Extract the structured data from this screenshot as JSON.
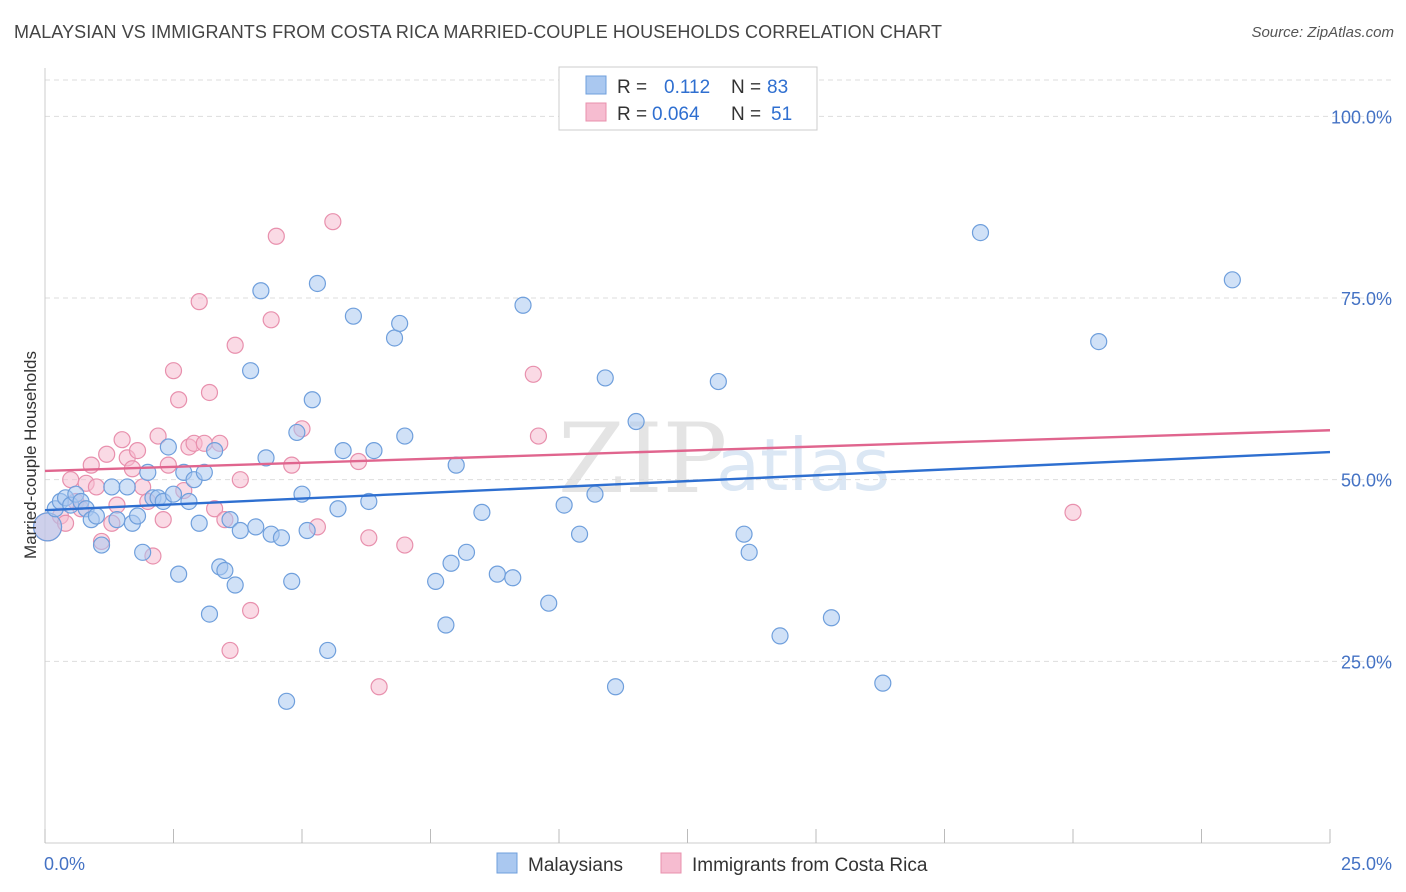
{
  "header": {
    "title": "MALAYSIAN VS IMMIGRANTS FROM COSTA RICA MARRIED-COUPLE HOUSEHOLDS CORRELATION CHART",
    "source": "Source: ZipAtlas.com"
  },
  "watermark": {
    "zip": "ZIP",
    "atlas": "atlas"
  },
  "legend": {
    "rows": [
      {
        "r_label": "R =",
        "r_value": "0.112",
        "n_label": "N =",
        "n_value": "83"
      },
      {
        "r_label": "R =",
        "r_value": "0.064",
        "n_label": "N =",
        "n_value": "51"
      }
    ]
  },
  "colors": {
    "blue_fill": "#aac8f0",
    "blue_stroke": "#6f9fdc",
    "blue_line": "#2e6fd0",
    "pink_fill": "#f6bcd0",
    "pink_stroke": "#e890ad",
    "pink_line": "#e0658e",
    "grid": "#dddddd",
    "axis_label": "#4472c4"
  },
  "chart_data": {
    "type": "scatter",
    "title": "MALAYSIAN VS IMMIGRANTS FROM COSTA RICA MARRIED-COUPLE HOUSEHOLDS CORRELATION CHART",
    "xlabel": "",
    "ylabel": "Married-couple Households",
    "xlim": [
      0,
      25
    ],
    "ylim": [
      0,
      105
    ],
    "x_tick_labels": [
      "0.0%",
      "25.0%"
    ],
    "y_ticks": [
      25,
      50,
      75,
      100
    ],
    "y_tick_labels": [
      "25.0%",
      "50.0%",
      "75.0%",
      "100.0%"
    ],
    "grid": true,
    "legend_position": "top-center",
    "series": [
      {
        "name": "Malaysians",
        "R": 0.112,
        "N": 83,
        "trend": {
          "x": [
            0,
            25
          ],
          "y": [
            45.8,
            53.8
          ]
        },
        "points": [
          [
            0.05,
            43.5
          ],
          [
            0.2,
            46
          ],
          [
            0.3,
            47
          ],
          [
            0.4,
            47.5
          ],
          [
            0.5,
            46.5
          ],
          [
            0.6,
            48
          ],
          [
            0.7,
            47
          ],
          [
            0.8,
            46
          ],
          [
            0.9,
            44.5
          ],
          [
            1.0,
            45
          ],
          [
            1.1,
            41
          ],
          [
            1.3,
            49
          ],
          [
            1.4,
            44.5
          ],
          [
            1.6,
            49
          ],
          [
            1.7,
            44
          ],
          [
            1.8,
            45
          ],
          [
            1.9,
            40
          ],
          [
            2.0,
            51
          ],
          [
            2.1,
            47.5
          ],
          [
            2.2,
            47.5
          ],
          [
            2.3,
            47
          ],
          [
            2.4,
            54.5
          ],
          [
            2.5,
            48
          ],
          [
            2.6,
            37
          ],
          [
            2.7,
            51
          ],
          [
            2.8,
            47
          ],
          [
            2.9,
            50
          ],
          [
            3.0,
            44
          ],
          [
            3.1,
            51
          ],
          [
            3.2,
            31.5
          ],
          [
            3.3,
            54
          ],
          [
            3.4,
            38
          ],
          [
            3.5,
            37.5
          ],
          [
            3.6,
            44.5
          ],
          [
            3.7,
            35.5
          ],
          [
            3.8,
            43
          ],
          [
            4.0,
            65
          ],
          [
            4.1,
            43.5
          ],
          [
            4.2,
            76
          ],
          [
            4.3,
            53
          ],
          [
            4.4,
            42.5
          ],
          [
            4.6,
            42
          ],
          [
            4.7,
            19.5
          ],
          [
            4.8,
            36
          ],
          [
            4.9,
            56.5
          ],
          [
            5.0,
            48
          ],
          [
            5.1,
            43
          ],
          [
            5.2,
            61
          ],
          [
            5.3,
            77
          ],
          [
            5.5,
            26.5
          ],
          [
            5.7,
            46
          ],
          [
            5.8,
            54
          ],
          [
            6.0,
            72.5
          ],
          [
            6.3,
            47
          ],
          [
            6.4,
            54
          ],
          [
            6.8,
            69.5
          ],
          [
            6.9,
            71.5
          ],
          [
            7.0,
            56
          ],
          [
            7.6,
            36
          ],
          [
            7.8,
            30
          ],
          [
            7.9,
            38.5
          ],
          [
            8.0,
            52
          ],
          [
            8.2,
            40
          ],
          [
            8.5,
            45.5
          ],
          [
            8.8,
            37
          ],
          [
            9.1,
            36.5
          ],
          [
            9.3,
            74
          ],
          [
            9.8,
            33
          ],
          [
            10.1,
            46.5
          ],
          [
            10.4,
            42.5
          ],
          [
            10.7,
            48
          ],
          [
            10.9,
            64
          ],
          [
            11.1,
            21.5
          ],
          [
            11.5,
            58
          ],
          [
            13.1,
            63.5
          ],
          [
            13.6,
            42.5
          ],
          [
            13.7,
            40
          ],
          [
            14.3,
            28.5
          ],
          [
            15.3,
            31
          ],
          [
            16.3,
            22
          ],
          [
            18.2,
            84
          ],
          [
            20.5,
            69
          ],
          [
            23.1,
            77.5
          ]
        ]
      },
      {
        "name": "Immigrants from Costa Rica",
        "R": 0.064,
        "N": 51,
        "trend": {
          "x": [
            0,
            25
          ],
          "y": [
            51.2,
            56.8
          ]
        },
        "points": [
          [
            0.05,
            43.5
          ],
          [
            0.3,
            45
          ],
          [
            0.4,
            44
          ],
          [
            0.5,
            50
          ],
          [
            0.6,
            47
          ],
          [
            0.7,
            46
          ],
          [
            0.8,
            49.5
          ],
          [
            0.9,
            52
          ],
          [
            1.0,
            49
          ],
          [
            1.1,
            41.5
          ],
          [
            1.2,
            53.5
          ],
          [
            1.3,
            44
          ],
          [
            1.4,
            46.5
          ],
          [
            1.5,
            55.5
          ],
          [
            1.6,
            53
          ],
          [
            1.7,
            51.5
          ],
          [
            1.8,
            54
          ],
          [
            1.9,
            49
          ],
          [
            2.0,
            47
          ],
          [
            2.1,
            39.5
          ],
          [
            2.2,
            56
          ],
          [
            2.3,
            44.5
          ],
          [
            2.4,
            52
          ],
          [
            2.5,
            65
          ],
          [
            2.6,
            61
          ],
          [
            2.7,
            48.5
          ],
          [
            2.8,
            54.5
          ],
          [
            2.9,
            55
          ],
          [
            3.0,
            74.5
          ],
          [
            3.1,
            55
          ],
          [
            3.2,
            62
          ],
          [
            3.3,
            46
          ],
          [
            3.4,
            55
          ],
          [
            3.5,
            44.5
          ],
          [
            3.6,
            26.5
          ],
          [
            3.7,
            68.5
          ],
          [
            3.8,
            50
          ],
          [
            4.0,
            32
          ],
          [
            4.4,
            72
          ],
          [
            4.5,
            83.5
          ],
          [
            4.8,
            52
          ],
          [
            5.0,
            57
          ],
          [
            5.3,
            43.5
          ],
          [
            5.6,
            85.5
          ],
          [
            6.1,
            52.5
          ],
          [
            6.3,
            42
          ],
          [
            6.5,
            21.5
          ],
          [
            7.0,
            41
          ],
          [
            9.5,
            64.5
          ],
          [
            9.6,
            56
          ],
          [
            20.0,
            45.5
          ]
        ]
      }
    ]
  },
  "bottom_legend": {
    "items": [
      {
        "label": "Malaysians"
      },
      {
        "label": "Immigrants from Costa Rica"
      }
    ]
  }
}
